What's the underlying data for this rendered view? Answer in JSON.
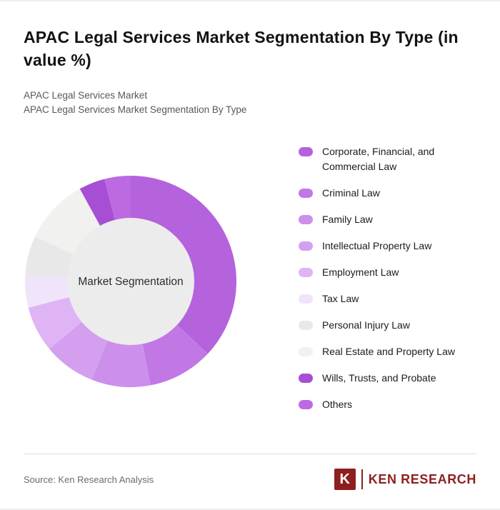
{
  "header": {
    "title": "APAC Legal Services Market Segmentation By Type (in value %)",
    "subtitle_line1": "APAC Legal Services Market",
    "subtitle_line2": "APAC Legal Services Market Segmentation By Type"
  },
  "chart_data": {
    "type": "pie",
    "subtype": "donut",
    "title": "APAC Legal Services Market Segmentation By Type (in value %)",
    "value_unit": "value %",
    "center_label": "Market Segmentation",
    "legend_position": "right",
    "categories": [
      "Corporate, Financial, and Commercial Law",
      "Criminal Law",
      "Family Law",
      "Intellectual Property Law",
      "Employment Law",
      "Tax Law",
      "Personal Injury Law",
      "Real Estate and Property Law",
      "Wills, Trusts, and Probate",
      "Others"
    ],
    "values": [
      37,
      10,
      9,
      8,
      7,
      5,
      6,
      10,
      4,
      4
    ],
    "colors": [
      "#b562dd",
      "#c178e5",
      "#cd8fec",
      "#d59ff0",
      "#dfb4f4",
      "#f0e4fb",
      "#e8e8e8",
      "#f1f1ef",
      "#a74fd4",
      "#bc6ae2"
    ],
    "hole_color": "#ececec",
    "center_label_color": "#2e2e2e"
  },
  "footer": {
    "source": "Source: Ken Research Analysis",
    "logo": {
      "letter": "K",
      "wordmark": "KEN RESEARCH",
      "color": "#8e1f1f"
    }
  }
}
